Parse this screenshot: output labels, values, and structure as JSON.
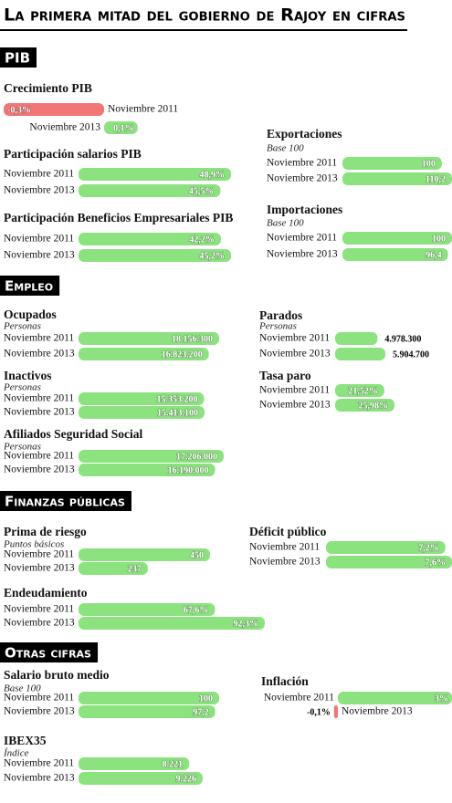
{
  "title": "La primera mitad del gobierno de Rajoy en cifras",
  "sections": [
    "PIB",
    "Empleo",
    "Finanzas públicas",
    "Otras cifras"
  ],
  "colors": {
    "positive": "#8ce27f",
    "negative": "#f27676"
  },
  "chart_data": [
    {
      "type": "bar",
      "title": "Crecimiento PIB",
      "categories": [
        "Noviembre 2011",
        "Noviembre 2013"
      ],
      "values": [
        -0.3,
        0.1
      ],
      "value_labels": [
        "-0,3%",
        "0,1%"
      ]
    },
    {
      "type": "bar",
      "title": "Participación salarios PIB",
      "categories": [
        "Noviembre 2011",
        "Noviembre 2013"
      ],
      "values": [
        48.9,
        45.5
      ],
      "value_labels": [
        "48,9%",
        "45,5%"
      ]
    },
    {
      "type": "bar",
      "title": "Participación Beneficios Empresariales PIB",
      "categories": [
        "Noviembre 2011",
        "Noviembre 2013"
      ],
      "values": [
        42.2,
        45.2
      ],
      "value_labels": [
        "42,2%",
        "45,2%"
      ]
    },
    {
      "type": "bar",
      "title": "Exportaciones",
      "subtitle": "Base 100",
      "categories": [
        "Noviembre 2011",
        "Noviembre 2013"
      ],
      "values": [
        100,
        110.2
      ],
      "value_labels": [
        "100",
        "110,2"
      ]
    },
    {
      "type": "bar",
      "title": "Importaciones",
      "subtitle": "Base 100",
      "categories": [
        "Noviembre 2011",
        "Noviembre 2013"
      ],
      "values": [
        100,
        96.4
      ],
      "value_labels": [
        "100",
        "96,4"
      ]
    },
    {
      "type": "bar",
      "title": "Ocupados",
      "subtitle": "Personas",
      "categories": [
        "Noviembre 2011",
        "Noviembre 2013"
      ],
      "values": [
        18156300,
        16823200
      ],
      "value_labels": [
        "18.156.300",
        "16.823.200"
      ]
    },
    {
      "type": "bar",
      "title": "Inactivos",
      "subtitle": "Personas",
      "categories": [
        "Noviembre 2011",
        "Noviembre 2013"
      ],
      "values": [
        15353200,
        15413100
      ],
      "value_labels": [
        "15.353.200",
        "15.413.100"
      ]
    },
    {
      "type": "bar",
      "title": "Afiliados Seguridad Social",
      "subtitle": "Personas",
      "categories": [
        "Noviembre 2011",
        "Noviembre 2013"
      ],
      "values": [
        17206000,
        16190000
      ],
      "value_labels": [
        "17.206.000",
        "16.190.000"
      ]
    },
    {
      "type": "bar",
      "title": "Parados",
      "subtitle": "Personas",
      "categories": [
        "Noviembre 2011",
        "Noviembre 2013"
      ],
      "values": [
        4978300,
        5904700
      ],
      "value_labels": [
        "4.978.300",
        "5.904.700"
      ]
    },
    {
      "type": "bar",
      "title": "Tasa paro",
      "categories": [
        "Noviembre 2011",
        "Noviembre 2013"
      ],
      "values": [
        21.52,
        25.98
      ],
      "value_labels": [
        "21,52%",
        "25,98%"
      ]
    },
    {
      "type": "bar",
      "title": "Prima de riesgo",
      "subtitle": "Puntos básicos",
      "categories": [
        "Noviembre 2011",
        "Noviembre 2013"
      ],
      "values": [
        450,
        237
      ]
    },
    {
      "type": "bar",
      "title": "Endeudamiento",
      "categories": [
        "Noviembre 2011",
        "Noviembre 2013"
      ],
      "values": [
        67.6,
        92.3
      ],
      "value_labels": [
        "67,6%",
        "92,3%"
      ]
    },
    {
      "type": "bar",
      "title": "Déficit público",
      "categories": [
        "Noviembre 2011",
        "Noviembre 2013"
      ],
      "values": [
        7.2,
        7.6
      ],
      "value_labels": [
        "7,2%",
        "7,6%"
      ]
    },
    {
      "type": "bar",
      "title": "Salario bruto medio",
      "subtitle": "Base 100",
      "categories": [
        "Noviembre 2011",
        "Noviembre 2013"
      ],
      "values": [
        100,
        97.2
      ],
      "value_labels": [
        "100",
        "97,2"
      ]
    },
    {
      "type": "bar",
      "title": "Inflación",
      "categories": [
        "Noviembre 2011",
        "Noviembre 2013"
      ],
      "values": [
        3,
        -0.1
      ],
      "value_labels": [
        "3%",
        "-0,1%"
      ]
    },
    {
      "type": "bar",
      "title": "IBEX35",
      "subtitle": "Índice",
      "categories": [
        "Noviembre 2011",
        "Noviembre 2013"
      ],
      "values": [
        8221,
        9226
      ],
      "value_labels": [
        "8.221",
        "9.226"
      ]
    }
  ]
}
